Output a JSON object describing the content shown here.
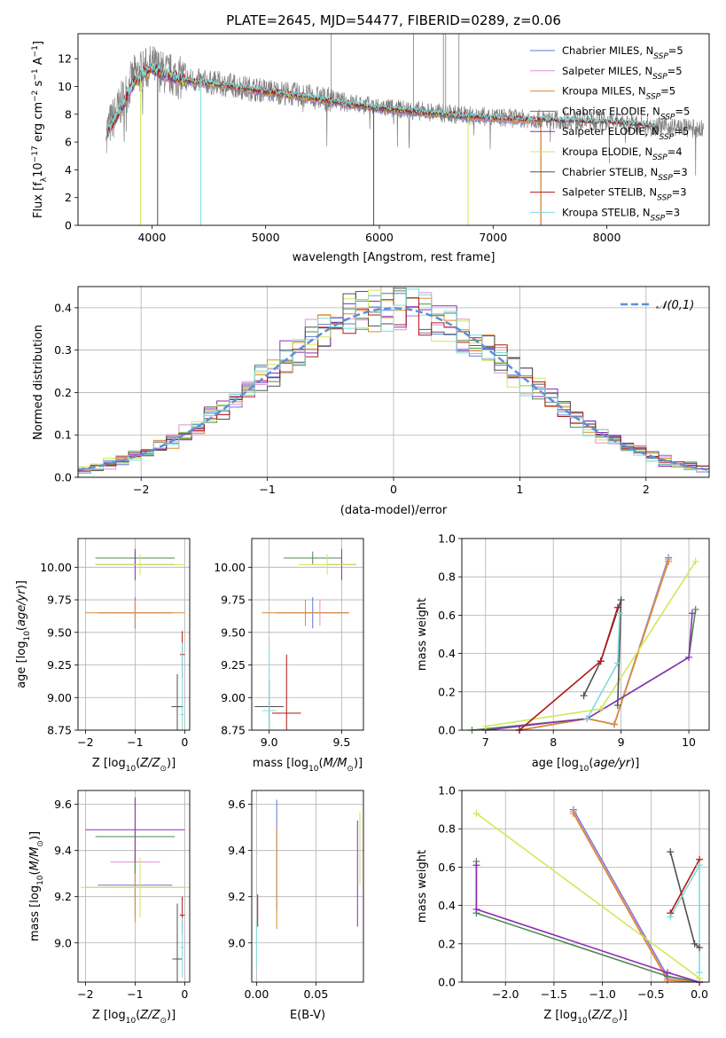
{
  "figure_title": "PLATE=2645, MJD=54477, FIBERID=0289, z=0.06",
  "colors": {
    "Chabrier MILES": "#5b7bd5",
    "Salpeter MILES": "#e58fd0",
    "Kroupa MILES": "#d98b2b",
    "Chabrier ELODIE": "#4f8a4f",
    "Salpeter ELODIE": "#8b2fb5",
    "Kroupa ELODIE": "#cfe85a",
    "Chabrier STELIB": "#505050",
    "Salpeter STELIB": "#b01818",
    "Kroupa STELIB": "#7fdcdc",
    "data": "#808080",
    "gaussian": "#5b8fd9"
  },
  "chart_data": [
    {
      "id": "spectrum",
      "type": "line",
      "xlabel": "wavelength [Angstrom, rest frame]",
      "ylabel": "Flux [f_λ 10^-17 erg cm^-2 s^-1 A^-1]",
      "xlim": [
        3350,
        8900
      ],
      "ylim": [
        0,
        13.8
      ],
      "xticks": [
        4000,
        5000,
        6000,
        7000,
        8000
      ],
      "yticks": [
        0,
        2,
        4,
        6,
        8,
        10,
        12
      ],
      "grid": false,
      "legend_position": "upper-right",
      "legend": [
        {
          "name": "Chabrier MILES",
          "nssp": "5"
        },
        {
          "name": "Salpeter MILES",
          "nssp": "5"
        },
        {
          "name": "Kroupa MILES",
          "nssp": "5"
        },
        {
          "name": "Chabrier ELODIE",
          "nssp": "5"
        },
        {
          "name": "Salpeter ELODIE",
          "nssp": "5"
        },
        {
          "name": "Kroupa ELODIE",
          "nssp": "4"
        },
        {
          "name": "Chabrier STELIB",
          "nssp": "3"
        },
        {
          "name": "Salpeter STELIB",
          "nssp": "3"
        },
        {
          "name": "Kroupa STELIB",
          "nssp": "3"
        }
      ],
      "data_trend": {
        "x": [
          3600,
          3700,
          3850,
          4000,
          4100,
          4300,
          4600,
          4900,
          5200,
          5600,
          6000,
          6400,
          6800,
          7200,
          7600,
          8000,
          8400,
          8850
        ],
        "y": [
          6.8,
          8.3,
          10.8,
          11.5,
          11.0,
          10.5,
          10.2,
          9.8,
          9.5,
          9.0,
          8.5,
          8.2,
          7.9,
          7.7,
          7.6,
          7.5,
          7.2,
          6.9
        ]
      },
      "model_trend": {
        "x": [
          3600,
          3700,
          3850,
          4000,
          4100,
          4300,
          4600,
          4900,
          5200,
          5600,
          6000,
          6400,
          6800,
          7200,
          7600,
          8000,
          8400,
          8850
        ],
        "y": [
          6.6,
          8.0,
          10.4,
          11.3,
          10.9,
          10.4,
          10.1,
          9.7,
          9.4,
          8.9,
          8.4,
          8.1,
          7.8,
          7.6,
          7.5,
          7.4,
          7.1,
          6.8
        ]
      }
    },
    {
      "id": "residual-histogram",
      "type": "histogram",
      "xlabel": "(data-model)/error",
      "ylabel": "Normed distribution",
      "xlim": [
        -2.5,
        2.5
      ],
      "ylim": [
        0,
        0.45
      ],
      "xticks": [
        -2,
        -1,
        0,
        1,
        2
      ],
      "yticks": [
        0.0,
        0.1,
        0.2,
        0.3,
        0.4
      ],
      "grid": true,
      "legend_position": "upper-right",
      "legend_label": "𝒩(0,1)",
      "bin_width": 0.1,
      "bin_start": -2.5,
      "reference": {
        "type": "gaussian",
        "mean": 0,
        "sigma": 1
      }
    },
    {
      "id": "age-vs-z",
      "type": "errorbar",
      "xlabel": "Z [log10(Z/Z⊙)]",
      "ylabel": "age [log10(age/yr)]",
      "xlim": [
        -2.15,
        0.1
      ],
      "ylim": [
        8.75,
        10.22
      ],
      "xticks": [
        -2,
        -1,
        0
      ],
      "yticks": [
        8.75,
        9.0,
        9.25,
        9.5,
        9.75,
        10.0
      ],
      "grid": true,
      "points": [
        {
          "model": "Chabrier MILES",
          "x": -1.0,
          "y": 9.65,
          "xerr": 0.75,
          "yerr": 0.12
        },
        {
          "model": "Salpeter MILES",
          "x": -1.0,
          "y": 9.65,
          "xerr": 0.5,
          "yerr": 0.1
        },
        {
          "model": "Kroupa MILES",
          "x": -1.0,
          "y": 9.65,
          "xerr": 1.0,
          "yerr": 0.1
        },
        {
          "model": "Chabrier ELODIE",
          "x": -1.0,
          "y": 10.07,
          "xerr": 0.8,
          "yerr": 0.05
        },
        {
          "model": "Salpeter ELODIE",
          "x": -1.0,
          "y": 10.02,
          "xerr": 0.8,
          "yerr": 0.12
        },
        {
          "model": "Kroupa ELODIE",
          "x": -0.9,
          "y": 10.02,
          "xerr": 0.9,
          "yerr": 0.08
        },
        {
          "model": "Chabrier STELIB",
          "x": -0.15,
          "y": 8.93,
          "xerr": 0.12,
          "yerr": 0.25
        },
        {
          "model": "Salpeter STELIB",
          "x": -0.05,
          "y": 9.33,
          "xerr": 0.05,
          "yerr": 0.18
        },
        {
          "model": "Kroupa STELIB",
          "x": -0.05,
          "y": 8.87,
          "xerr": 0.05,
          "yerr": 0.55
        }
      ]
    },
    {
      "id": "age-vs-mass",
      "type": "errorbar",
      "xlabel": "mass [log10(M/M⊙)]",
      "ylabel": "",
      "xlim": [
        8.88,
        9.65
      ],
      "ylim": [
        8.75,
        10.22
      ],
      "xticks": [
        9.0,
        9.5
      ],
      "yticks": [
        8.75,
        9.0,
        9.25,
        9.5,
        9.75,
        10.0
      ],
      "grid": true,
      "points": [
        {
          "model": "Chabrier MILES",
          "x": 9.3,
          "y": 9.65,
          "xerr": 0.25,
          "yerr": 0.12
        },
        {
          "model": "Salpeter MILES",
          "x": 9.35,
          "y": 9.65,
          "xerr": 0.2,
          "yerr": 0.1
        },
        {
          "model": "Kroupa MILES",
          "x": 9.25,
          "y": 9.65,
          "xerr": 0.3,
          "yerr": 0.1
        },
        {
          "model": "Chabrier ELODIE",
          "x": 9.3,
          "y": 10.07,
          "xerr": 0.2,
          "yerr": 0.05
        },
        {
          "model": "Salpeter ELODIE",
          "x": 9.5,
          "y": 10.02,
          "xerr": 0.1,
          "yerr": 0.12
        },
        {
          "model": "Kroupa ELODIE",
          "x": 9.4,
          "y": 10.02,
          "xerr": 0.2,
          "yerr": 0.08
        },
        {
          "model": "Chabrier STELIB",
          "x": 9.0,
          "y": 8.93,
          "xerr": 0.1,
          "yerr": 0.2
        },
        {
          "model": "Salpeter STELIB",
          "x": 9.12,
          "y": 8.88,
          "xerr": 0.1,
          "yerr": 0.45
        },
        {
          "model": "Kroupa STELIB",
          "x": 9.0,
          "y": 8.9,
          "xerr": 0.05,
          "yerr": 0.5
        }
      ]
    },
    {
      "id": "mass-weight-vs-age",
      "type": "line",
      "xlabel": "age [log10(age/yr)]",
      "ylabel": "mass weight",
      "xlim": [
        6.65,
        10.3
      ],
      "ylim": [
        0,
        1.0
      ],
      "xticks": [
        7,
        8,
        9,
        10
      ],
      "yticks": [
        0.0,
        0.2,
        0.4,
        0.6,
        0.8,
        1.0
      ],
      "grid": true,
      "series": [
        {
          "name": "Chabrier MILES",
          "x": [
            7.5,
            8.5,
            8.9,
            9.7
          ],
          "y": [
            0.0,
            0.06,
            0.03,
            0.9
          ]
        },
        {
          "name": "Salpeter MILES",
          "x": [
            7.5,
            8.5,
            8.9,
            9.7
          ],
          "y": [
            0.0,
            0.06,
            0.03,
            0.89
          ]
        },
        {
          "name": "Kroupa MILES",
          "x": [
            7.5,
            8.5,
            8.9,
            9.7
          ],
          "y": [
            0.0,
            0.06,
            0.03,
            0.88
          ]
        },
        {
          "name": "Chabrier ELODIE",
          "x": [
            6.8,
            8.5,
            10.0,
            10.1
          ],
          "y": [
            0.0,
            0.06,
            0.38,
            0.63
          ]
        },
        {
          "name": "Salpeter ELODIE",
          "x": [
            7.0,
            8.5,
            10.0,
            10.05
          ],
          "y": [
            0.0,
            0.06,
            0.38,
            0.61
          ]
        },
        {
          "name": "Kroupa ELODIE",
          "x": [
            7.0,
            8.7,
            10.1
          ],
          "y": [
            0.02,
            0.11,
            0.88
          ]
        },
        {
          "name": "Chabrier STELIB",
          "x": [
            8.45,
            8.7,
            9.0,
            8.95
          ],
          "y": [
            0.18,
            0.36,
            0.68,
            0.13
          ]
        },
        {
          "name": "Salpeter STELIB",
          "x": [
            7.5,
            8.7,
            8.95
          ],
          "y": [
            0.0,
            0.36,
            0.64
          ]
        },
        {
          "name": "Kroupa STELIB",
          "x": [
            8.5,
            8.95,
            8.98
          ],
          "y": [
            0.06,
            0.35,
            0.61
          ]
        }
      ]
    },
    {
      "id": "mass-vs-z",
      "type": "errorbar",
      "xlabel": "Z [log10(Z/Z⊙)]",
      "ylabel": "mass [log10(M/M⊙)]",
      "xlim": [
        -2.15,
        0.1
      ],
      "ylim": [
        8.83,
        9.66
      ],
      "xticks": [
        -2,
        -1,
        0
      ],
      "yticks": [
        9.0,
        9.2,
        9.4,
        9.6
      ],
      "grid": true,
      "points": [
        {
          "model": "Chabrier MILES",
          "x": -1.0,
          "y": 9.25,
          "xerr": 0.75,
          "yerr": 0.13
        },
        {
          "model": "Salpeter MILES",
          "x": -1.0,
          "y": 9.35,
          "xerr": 0.5,
          "yerr": 0.1
        },
        {
          "model": "Kroupa MILES",
          "x": -1.0,
          "y": 9.24,
          "xerr": 1.0,
          "yerr": 0.15
        },
        {
          "model": "Chabrier ELODIE",
          "x": -1.0,
          "y": 9.46,
          "xerr": 0.8,
          "yerr": 0.16
        },
        {
          "model": "Salpeter ELODIE",
          "x": -1.0,
          "y": 9.49,
          "xerr": 1.0,
          "yerr": 0.14
        },
        {
          "model": "Kroupa ELODIE",
          "x": -0.9,
          "y": 9.24,
          "xerr": 1.2,
          "yerr": 0.13
        },
        {
          "model": "Chabrier STELIB",
          "x": -0.15,
          "y": 8.93,
          "xerr": 0.1,
          "yerr": 0.24
        },
        {
          "model": "Salpeter STELIB",
          "x": -0.05,
          "y": 9.12,
          "xerr": 0.05,
          "yerr": 0.08
        },
        {
          "model": "Kroupa STELIB",
          "x": -0.05,
          "y": 8.98,
          "xerr": 0.05,
          "yerr": 0.13
        }
      ]
    },
    {
      "id": "mass-vs-ebv",
      "type": "errorbar",
      "xlabel": "E(B-V)",
      "ylabel": "",
      "xlim": [
        -0.004,
        0.09
      ],
      "ylim": [
        8.83,
        9.66
      ],
      "xticks": [
        0.0,
        0.05
      ],
      "yticks": [
        9.0,
        9.2,
        9.4,
        9.6
      ],
      "grid": true,
      "points": [
        {
          "model": "Salpeter ELODIE",
          "x": 0.085,
          "y": 9.3,
          "xerr": 0,
          "yerr": 0.23
        },
        {
          "model": "Kroupa ELODIE",
          "x": 0.087,
          "y": 9.41,
          "xerr": 0,
          "yerr": 0.16
        },
        {
          "model": "Chabrier MILES",
          "x": 0.017,
          "y": 9.38,
          "xerr": 0,
          "yerr": 0.24
        },
        {
          "model": "Kroupa MILES",
          "x": 0.017,
          "y": 9.28,
          "xerr": 0,
          "yerr": 0.22
        },
        {
          "model": "Salpeter STELIB",
          "x": 0.001,
          "y": 9.14,
          "xerr": 0,
          "yerr": 0.07
        },
        {
          "model": "Kroupa STELIB",
          "x": 0.0,
          "y": 8.99,
          "xerr": 0,
          "yerr": 0.1
        }
      ]
    },
    {
      "id": "mass-weight-vs-z",
      "type": "line",
      "xlabel": "Z [log10(Z/Z⊙)]",
      "ylabel": "mass weight",
      "xlim": [
        -2.45,
        0.1
      ],
      "ylim": [
        0,
        1.0
      ],
      "xticks": [
        -2.0,
        -1.5,
        -1.0,
        -0.5,
        0.0
      ],
      "yticks": [
        0.0,
        0.2,
        0.4,
        0.6,
        0.8,
        1.0
      ],
      "grid": true,
      "series": [
        {
          "name": "Chabrier MILES",
          "x": [
            -1.3,
            -0.33,
            0.0
          ],
          "y": [
            0.9,
            0.03,
            0.0
          ]
        },
        {
          "name": "Salpeter MILES",
          "x": [
            -1.3,
            -0.33,
            0.0
          ],
          "y": [
            0.89,
            0.02,
            0.0
          ]
        },
        {
          "name": "Kroupa MILES",
          "x": [
            -1.3,
            -0.33,
            0.0
          ],
          "y": [
            0.88,
            0.01,
            0.0
          ]
        },
        {
          "name": "Chabrier ELODIE",
          "x": [
            -2.3,
            -2.3,
            -0.33,
            0.0
          ],
          "y": [
            0.63,
            0.36,
            0.03,
            0.0
          ]
        },
        {
          "name": "Salpeter ELODIE",
          "x": [
            -2.3,
            -2.3,
            -0.33,
            0.0
          ],
          "y": [
            0.61,
            0.38,
            0.05,
            0.0
          ]
        },
        {
          "name": "Kroupa ELODIE",
          "x": [
            -2.3,
            0.0
          ],
          "y": [
            0.88,
            0.02
          ]
        },
        {
          "name": "Chabrier STELIB",
          "x": [
            -0.3,
            -0.05,
            0.0
          ],
          "y": [
            0.68,
            0.2,
            0.18
          ]
        },
        {
          "name": "Salpeter STELIB",
          "x": [
            -0.3,
            0.0
          ],
          "y": [
            0.36,
            0.64
          ]
        },
        {
          "name": "Kroupa STELIB",
          "x": [
            -0.3,
            0.0,
            0.0
          ],
          "y": [
            0.34,
            0.61,
            0.05
          ]
        }
      ]
    }
  ]
}
